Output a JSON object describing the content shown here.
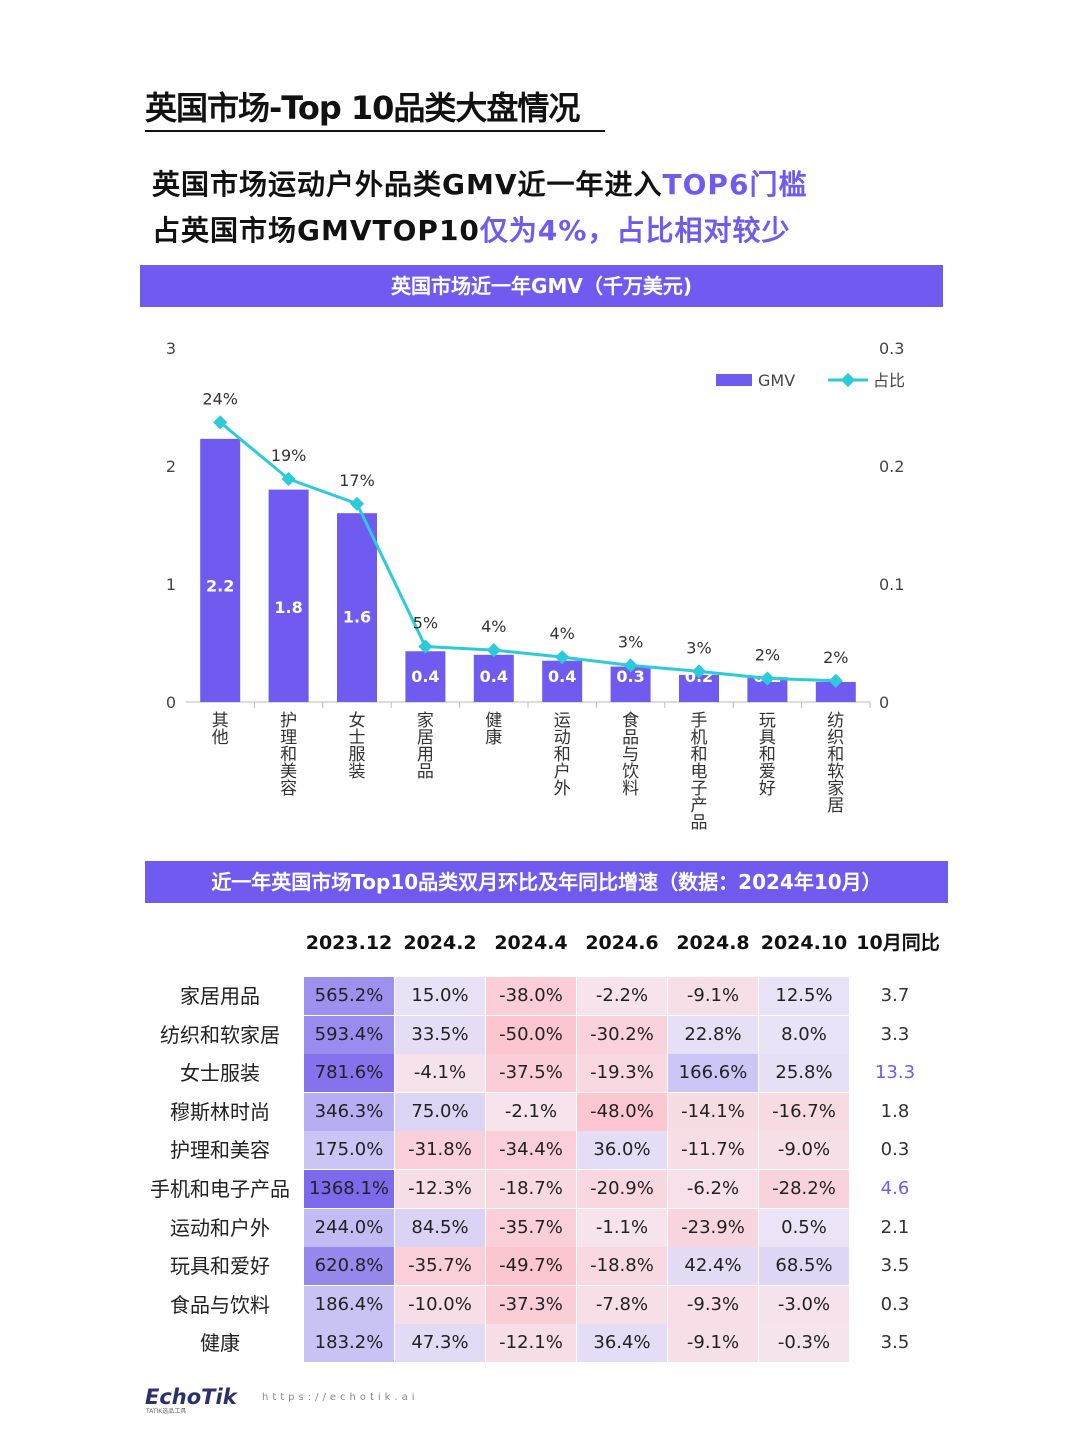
{
  "page_title": "英国市场-Top 10品类大盘情况",
  "headline": {
    "line1_a": "英国市场运动户外品类GMV近一年进入",
    "line1_b": "TOP6门槛",
    "line2_a": "占英国市场GMVTOP10",
    "line2_b": "仅为4%，占比相对较少",
    "accent_color": "#6f5bf0"
  },
  "chart_banner": "英国市场近一年GMV（千万美元)",
  "chart_data": {
    "type": "bar",
    "categories": [
      "其他",
      "护理和美容",
      "女士服装",
      "家居用品",
      "健康",
      "运动和户外",
      "食品与饮料",
      "手机和电子产品",
      "玩具和爱好",
      "纺织和软家居"
    ],
    "series": [
      {
        "name": "GMV",
        "type": "bar",
        "axis": "left",
        "values": [
          2.2,
          1.8,
          1.6,
          0.4,
          0.4,
          0.4,
          0.3,
          0.2,
          0.2,
          0.2
        ],
        "plot_values": [
          2.23,
          1.8,
          1.6,
          0.43,
          0.4,
          0.35,
          0.3,
          0.23,
          0.21,
          0.17
        ],
        "color": "#6f5bf0"
      },
      {
        "name": "占比",
        "type": "line",
        "axis": "right",
        "values": [
          0.24,
          0.19,
          0.17,
          0.05,
          0.04,
          0.04,
          0.03,
          0.03,
          0.02,
          0.02
        ],
        "plot_values": [
          0.237,
          0.189,
          0.168,
          0.047,
          0.044,
          0.038,
          0.031,
          0.026,
          0.02,
          0.018
        ],
        "labels": [
          "24%",
          "19%",
          "17%",
          "5%",
          "4%",
          "4%",
          "3%",
          "3%",
          "2%",
          "2%"
        ],
        "color": "#2ccbd9"
      }
    ],
    "y_left": {
      "ylim": [
        0,
        3
      ],
      "ticks": [
        "0",
        "1",
        "2",
        "3"
      ]
    },
    "y_right": {
      "ylim": [
        0,
        0.3
      ],
      "ticks": [
        "0",
        "0.1",
        "0.2",
        "0.3"
      ]
    },
    "legend_position": "top-right",
    "grid": false
  },
  "table_banner": "近一年英国市场Top10品类双月环比及年同比增速（数据：2024年10月）",
  "table": {
    "columns": [
      "2023.12",
      "2024.2",
      "2024.4",
      "2024.6",
      "2024.8",
      "2024.10",
      "10月同比"
    ],
    "rows": [
      {
        "label": "家居用品",
        "cells": [
          "565.2%",
          "15.0%",
          "-38.0%",
          "-2.2%",
          "-9.1%",
          "12.5%"
        ],
        "nums": [
          565.2,
          15.0,
          -38.0,
          -2.2,
          -9.1,
          12.5
        ],
        "yoy": "3.7"
      },
      {
        "label": "纺织和软家居",
        "cells": [
          "593.4%",
          "33.5%",
          "-50.0%",
          "-30.2%",
          "22.8%",
          "8.0%"
        ],
        "nums": [
          593.4,
          33.5,
          -50.0,
          -30.2,
          22.8,
          8.0
        ],
        "yoy": "3.3"
      },
      {
        "label": "女士服装",
        "cells": [
          "781.6%",
          "-4.1%",
          "-37.5%",
          "-19.3%",
          "166.6%",
          "25.8%"
        ],
        "nums": [
          781.6,
          -4.1,
          -37.5,
          -19.3,
          166.6,
          25.8
        ],
        "yoy": "13.3",
        "yoy_highlight": true
      },
      {
        "label": "穆斯林时尚",
        "cells": [
          "346.3%",
          "75.0%",
          "-2.1%",
          "-48.0%",
          "-14.1%",
          "-16.7%"
        ],
        "nums": [
          346.3,
          75.0,
          -2.1,
          -48.0,
          -14.1,
          -16.7
        ],
        "yoy": "1.8"
      },
      {
        "label": "护理和美容",
        "cells": [
          "175.0%",
          "-31.8%",
          "-34.4%",
          "36.0%",
          "-11.7%",
          "-9.0%"
        ],
        "nums": [
          175.0,
          -31.8,
          -34.4,
          36.0,
          -11.7,
          -9.0
        ],
        "yoy": "0.3"
      },
      {
        "label": "手机和电子产品",
        "cells": [
          "1368.1%",
          "-12.3%",
          "-18.7%",
          "-20.9%",
          "-6.2%",
          "-28.2%"
        ],
        "nums": [
          1368.1,
          -12.3,
          -18.7,
          -20.9,
          -6.2,
          -28.2
        ],
        "yoy": "4.6",
        "yoy_highlight": true
      },
      {
        "label": "运动和户外",
        "cells": [
          "244.0%",
          "84.5%",
          "-35.7%",
          "-1.1%",
          "-23.9%",
          "0.5%"
        ],
        "nums": [
          244.0,
          84.5,
          -35.7,
          -1.1,
          -23.9,
          0.5
        ],
        "yoy": "2.1"
      },
      {
        "label": "玩具和爱好",
        "cells": [
          "620.8%",
          "-35.7%",
          "-49.7%",
          "-18.8%",
          "42.4%",
          "68.5%"
        ],
        "nums": [
          620.8,
          -35.7,
          -49.7,
          -18.8,
          42.4,
          68.5
        ],
        "yoy": "3.5"
      },
      {
        "label": "食品与饮料",
        "cells": [
          "186.4%",
          "-10.0%",
          "-37.3%",
          "-7.8%",
          "-9.3%",
          "-3.0%"
        ],
        "nums": [
          186.4,
          -10.0,
          -37.3,
          -7.8,
          -9.3,
          -3.0
        ],
        "yoy": "0.3"
      },
      {
        "label": "健康",
        "cells": [
          "183.2%",
          "47.3%",
          "-12.1%",
          "36.4%",
          "-9.1%",
          "-0.3%"
        ],
        "nums": [
          183.2,
          47.3,
          -12.1,
          36.4,
          -9.1,
          -0.3
        ],
        "yoy": "3.5"
      }
    ]
  },
  "footer": {
    "logo": "EchoTik",
    "logo_sub": "TATIK选品工具",
    "url": "https://echotik.ai"
  }
}
